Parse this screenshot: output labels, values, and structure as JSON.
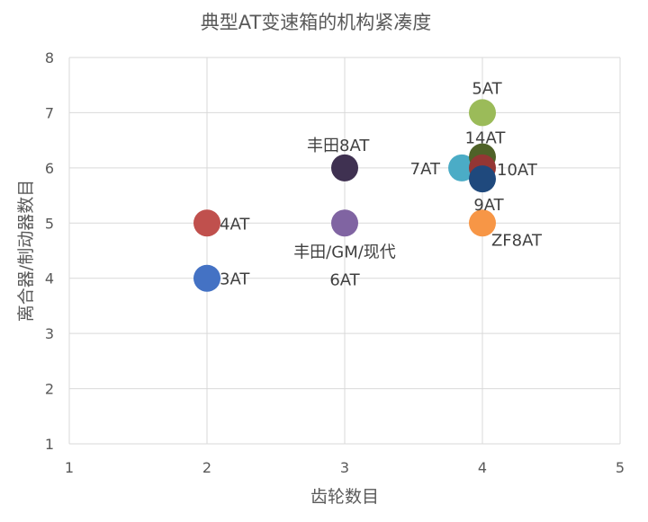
{
  "chart_data": {
    "type": "scatter",
    "title": "典型AT变速箱的机构紧凑度",
    "xlabel": "齿轮数目",
    "ylabel": "离合器/制动器数目",
    "xlim": [
      1,
      5
    ],
    "ylim": [
      1,
      8
    ],
    "xticks": [
      "1",
      "2",
      "3",
      "4",
      "5"
    ],
    "yticks": [
      "1",
      "2",
      "3",
      "4",
      "5",
      "6",
      "7",
      "8"
    ],
    "grid": true,
    "points": [
      {
        "label": "3AT",
        "x": 2,
        "y": 4,
        "color": "#4472c4"
      },
      {
        "label": "4AT",
        "x": 2,
        "y": 5,
        "color": "#c0504d"
      },
      {
        "label": "丰田8AT",
        "x": 3,
        "y": 6,
        "color": "#3f3151"
      },
      {
        "label": "丰田/GM/现代 6AT",
        "x": 3,
        "y": 5,
        "color": "#8064a2"
      },
      {
        "label": "7AT",
        "x": 3.85,
        "y": 6,
        "color": "#4bacc6"
      },
      {
        "label": "5AT",
        "x": 4,
        "y": 7,
        "color": "#9bbb59"
      },
      {
        "label": "14AT",
        "x": 4,
        "y": 6.2,
        "color": "#4f6228"
      },
      {
        "label": "10AT",
        "x": 4,
        "y": 6,
        "color": "#943634"
      },
      {
        "label": "9AT",
        "x": 4,
        "y": 5.8,
        "color": "#1f497d"
      },
      {
        "label": "ZF8AT",
        "x": 4,
        "y": 5,
        "color": "#f79646"
      }
    ]
  }
}
